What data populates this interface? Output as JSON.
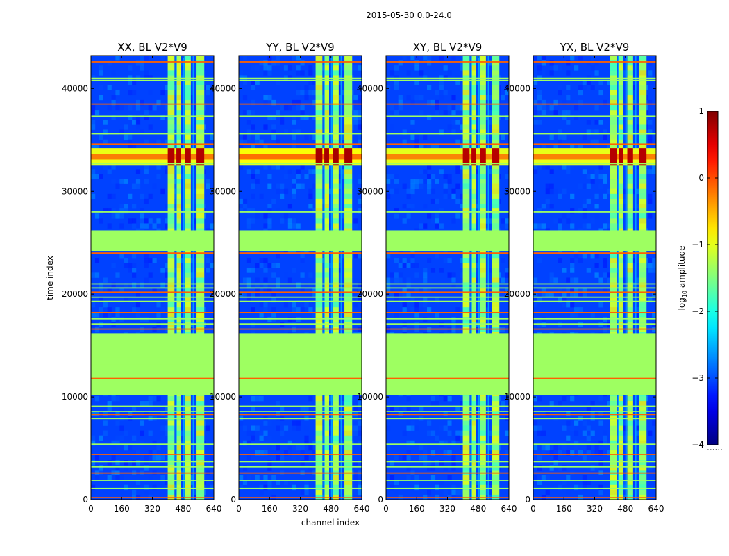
{
  "chart_data": {
    "type": "heatmap",
    "suptitle": "2015-05-30 0.0-24.0",
    "xlabel": "channel index",
    "ylabel": "time index",
    "colorbar_label": "log10 amplitude",
    "colorbar_label_base": "log",
    "colorbar_label_sub": "10",
    "colorbar_label_rest": " amplitude",
    "colorbar_range": [
      -4,
      1
    ],
    "colorbar_ticks": [
      "1",
      "0",
      "−1",
      "−2",
      "−3",
      "−4"
    ],
    "colorbar_tick_values": [
      1,
      0,
      -1,
      -2,
      -3,
      -4
    ],
    "colorbar_footnote": "......",
    "xlim": [
      0,
      640
    ],
    "ylim": [
      0,
      43200
    ],
    "x_ticks": [
      "0",
      "160",
      "320",
      "480",
      "640"
    ],
    "x_tick_values": [
      0,
      160,
      320,
      480,
      640
    ],
    "y_ticks": [
      "0",
      "10000",
      "20000",
      "30000",
      "40000"
    ],
    "y_tick_values": [
      0,
      10000,
      20000,
      30000,
      40000
    ],
    "panels": [
      {
        "title": "XX, BL V2*V9",
        "burst_intensity": 0.92,
        "band_x_start": 400
      },
      {
        "title": "YY, BL V2*V9",
        "burst_intensity": 1.0,
        "band_x_start": 400
      },
      {
        "title": "XY, BL V2*V9",
        "burst_intensity": 0.88,
        "band_x_start": 400
      },
      {
        "title": "YX, BL V2*V9",
        "burst_intensity": 0.9,
        "band_x_start": 400
      }
    ],
    "flagged_time_ranges": [
      [
        10200,
        16200
      ],
      [
        24200,
        26200
      ]
    ],
    "rfi_channel_bands": [
      [
        400,
        435
      ],
      [
        445,
        470
      ],
      [
        490,
        520
      ],
      [
        550,
        590
      ]
    ],
    "burst_time_range": [
      32500,
      34200
    ],
    "horizontal_lines": [
      200,
      1100,
      1900,
      2600,
      3200,
      3700,
      4400,
      5400,
      7900,
      8300,
      8600,
      9100,
      11800,
      13200,
      13800,
      16600,
      17100,
      17600,
      18200,
      19300,
      19700,
      20200,
      20600,
      21000,
      24000,
      28000,
      32700,
      34600,
      35600,
      37300,
      38500,
      40800,
      41000,
      42600
    ]
  }
}
